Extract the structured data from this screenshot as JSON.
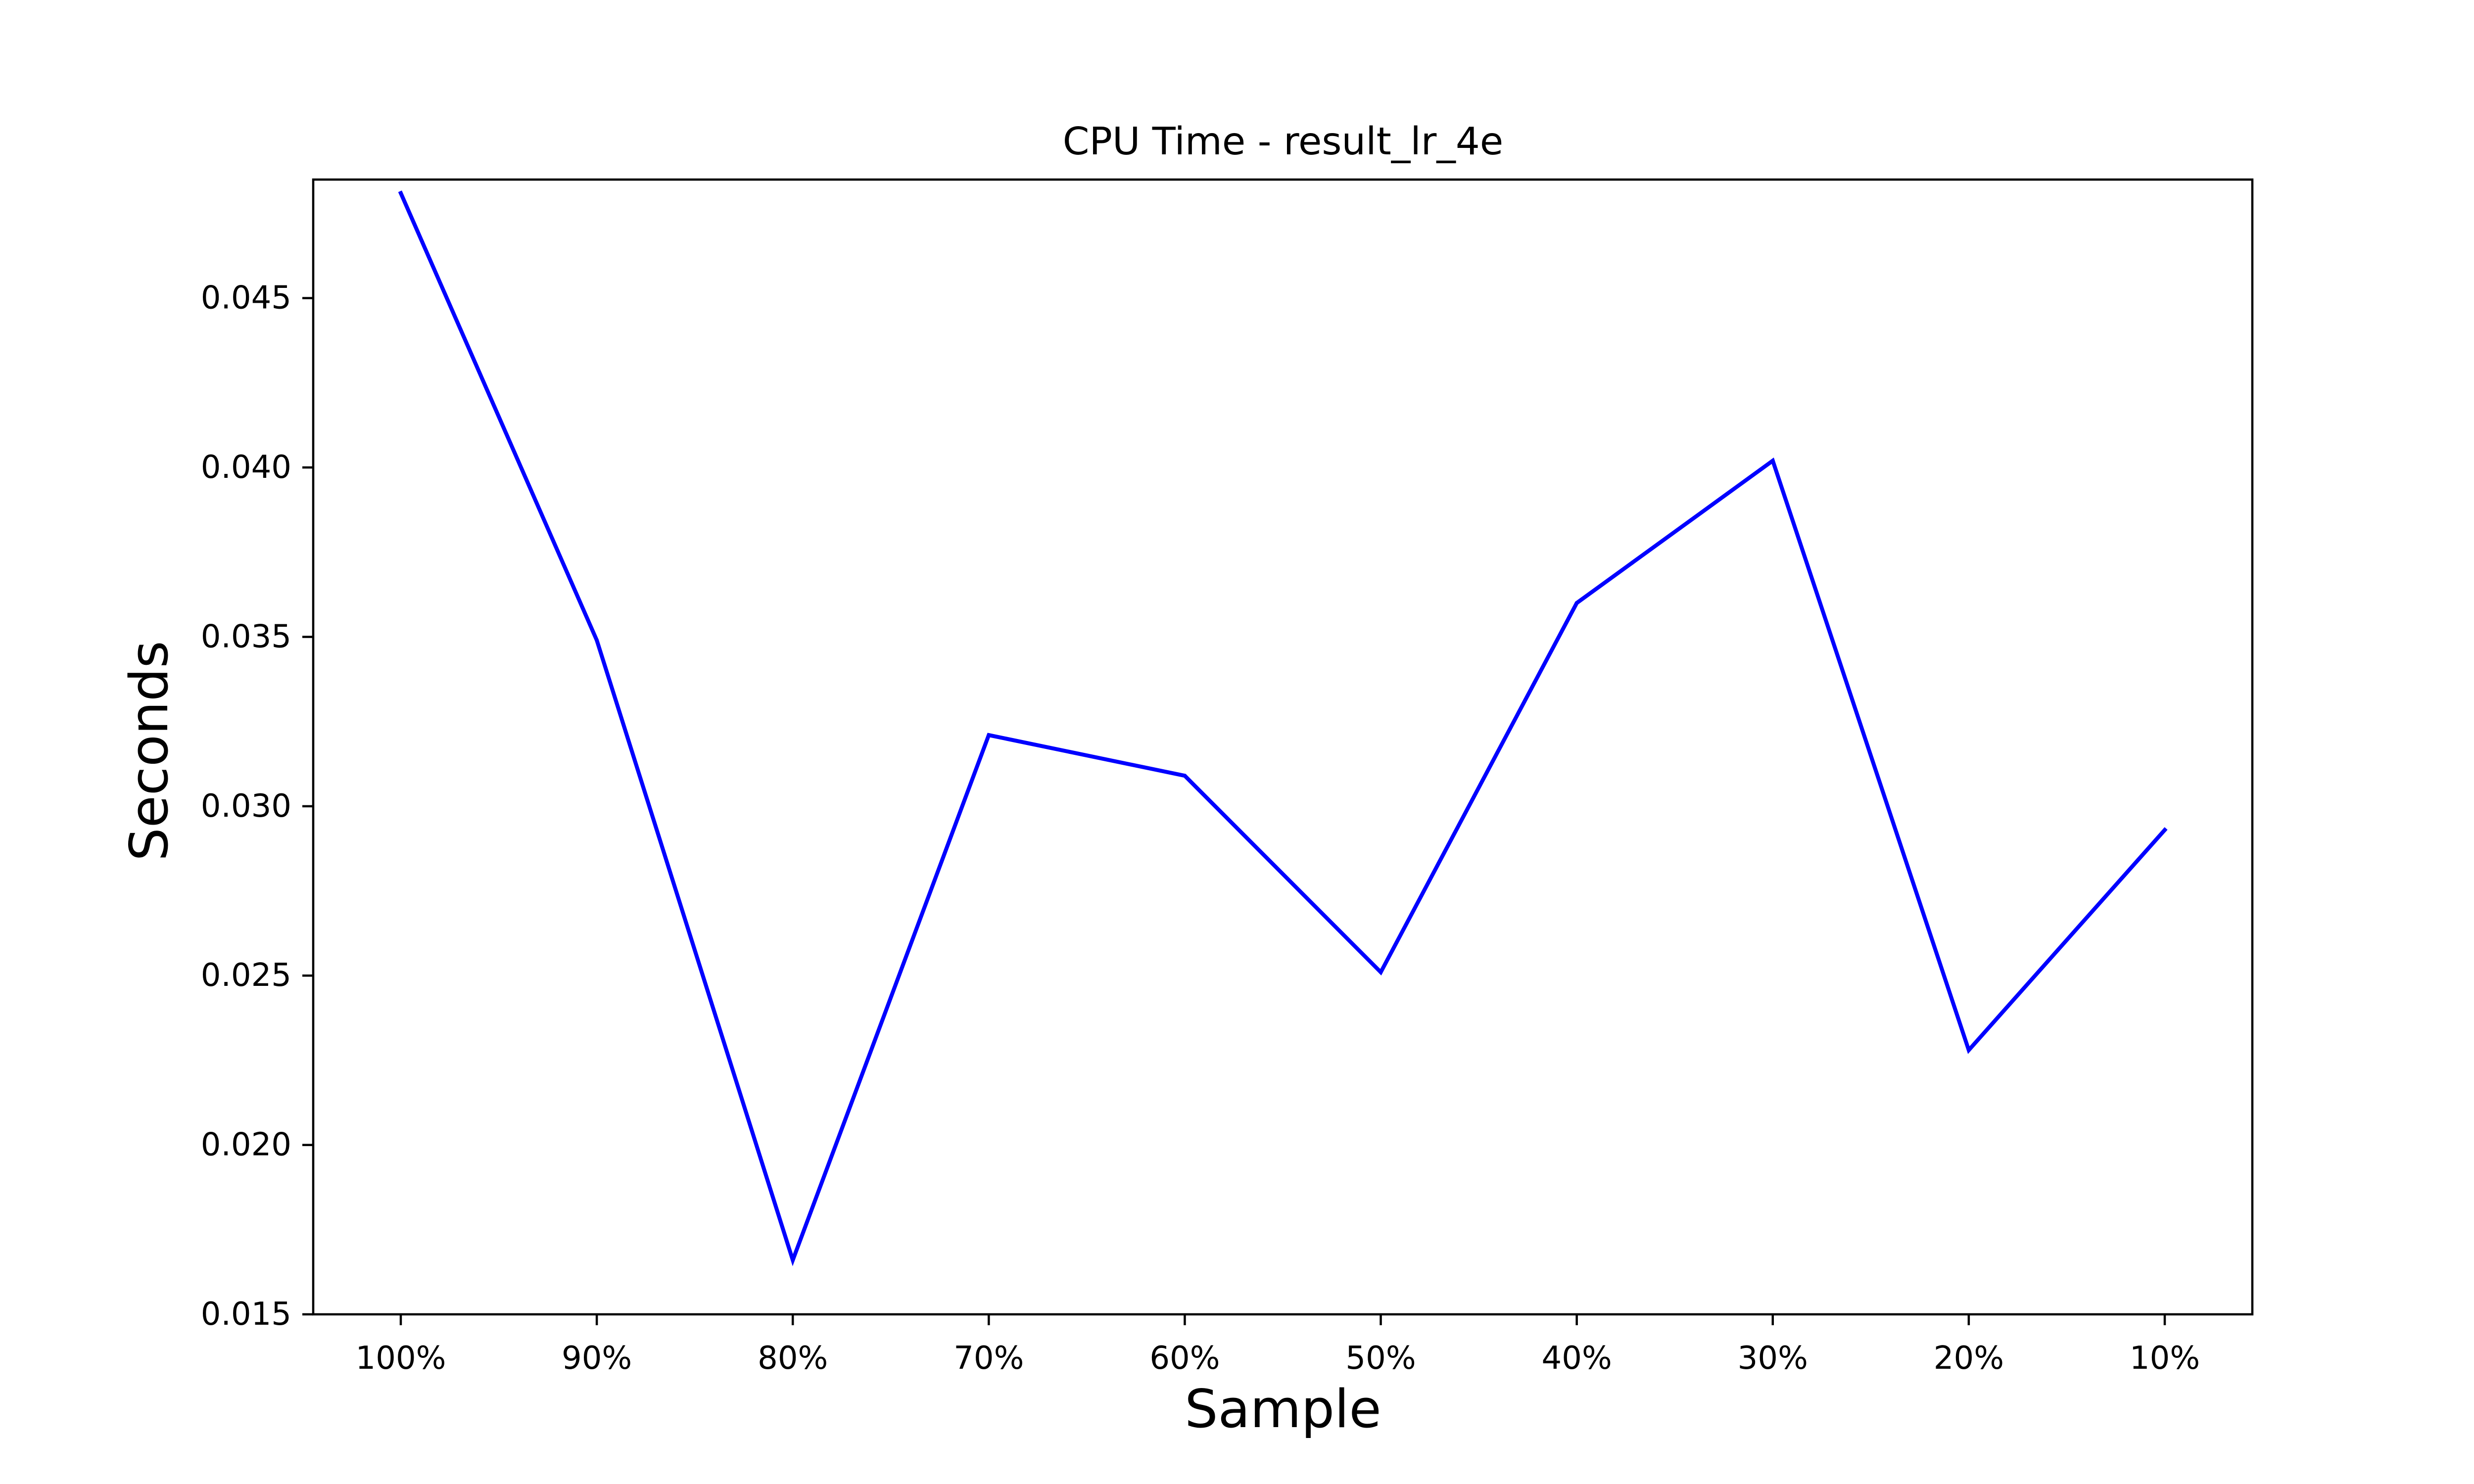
{
  "chart_data": {
    "type": "line",
    "title": "CPU Time - result_lr_4e",
    "xlabel": "Sample",
    "ylabel": "Seconds",
    "categories": [
      "100%",
      "90%",
      "80%",
      "70%",
      "60%",
      "50%",
      "40%",
      "30%",
      "20%",
      "10%"
    ],
    "series": [
      {
        "color": "#0000ff",
        "values": [
          0.0481,
          0.0349,
          0.0166,
          0.0321,
          0.0309,
          0.0251,
          0.036,
          0.0402,
          0.0228,
          0.0293
        ]
      }
    ],
    "ylim": [
      0.015,
      0.0485
    ],
    "yticks": [
      0.015,
      0.02,
      0.025,
      0.03,
      0.035,
      0.04,
      0.045
    ],
    "ytick_labels": [
      "0.015",
      "0.020",
      "0.025",
      "0.030",
      "0.035",
      "0.040",
      "0.045"
    ],
    "grid": false,
    "legend": "none"
  }
}
